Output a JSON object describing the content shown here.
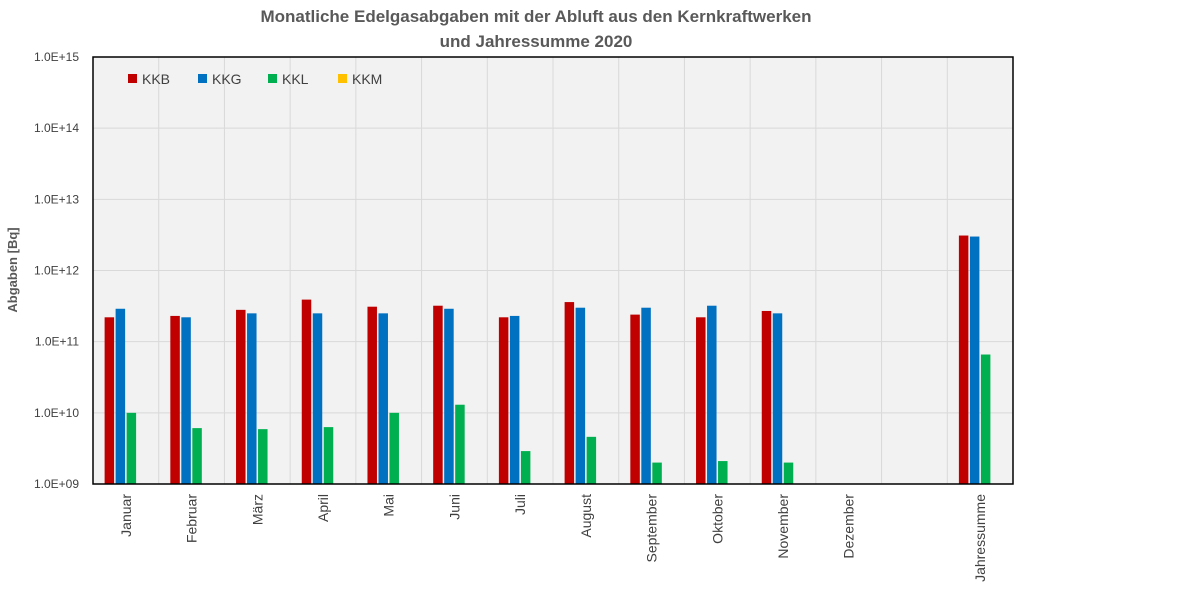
{
  "chart_data": {
    "type": "bar",
    "title_line1": "Monatliche Edelgasabgaben mit der Abluft aus den Kernkraftwerken",
    "title_line2": "und Jahressumme 2020",
    "ylabel": "Abgaben [Bq]",
    "xlabel": "",
    "yscale": "log",
    "ylim": [
      1000000000.0,
      1000000000000000.0
    ],
    "yticks": [
      "1.0E+09",
      "1.0E+10",
      "1.0E+11",
      "1.0E+12",
      "1.0E+13",
      "1.0E+14",
      "1.0E+15"
    ],
    "legend_position": "top-left",
    "grid": true,
    "categories": [
      "Januar",
      "Februar",
      "März",
      "April",
      "Mai",
      "Juni",
      "Juli",
      "August",
      "September",
      "Oktober",
      "November",
      "Dezember",
      "",
      "Jahressumme"
    ],
    "series": [
      {
        "name": "KKB",
        "color": "#c00000",
        "values": [
          220000000000.0,
          230000000000.0,
          280000000000.0,
          390000000000.0,
          310000000000.0,
          320000000000.0,
          220000000000.0,
          360000000000.0,
          240000000000.0,
          220000000000.0,
          270000000000.0,
          null,
          null,
          3100000000000.0
        ]
      },
      {
        "name": "KKG",
        "color": "#0070c0",
        "values": [
          290000000000.0,
          220000000000.0,
          250000000000.0,
          250000000000.0,
          250000000000.0,
          290000000000.0,
          230000000000.0,
          300000000000.0,
          300000000000.0,
          320000000000.0,
          250000000000.0,
          null,
          null,
          3000000000000.0
        ]
      },
      {
        "name": "KKL",
        "color": "#00b050",
        "values": [
          10000000000.0,
          6100000000.0,
          5900000000.0,
          6300000000.0,
          10000000000.0,
          13000000000.0,
          2900000000.0,
          4600000000.0,
          2000000000.0,
          2100000000.0,
          2000000000.0,
          null,
          null,
          66000000000.0
        ]
      },
      {
        "name": "KKM",
        "color": "#ffc000",
        "values": [
          null,
          null,
          null,
          null,
          null,
          null,
          null,
          null,
          null,
          null,
          null,
          null,
          null,
          null
        ]
      }
    ]
  }
}
